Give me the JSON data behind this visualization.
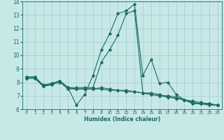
{
  "xlabel": "Humidex (Indice chaleur)",
  "background_color": "#c8e8e8",
  "grid_color": "#a8d0d0",
  "line_color": "#1a6b60",
  "xlim": [
    -0.5,
    23.5
  ],
  "ylim": [
    6,
    14
  ],
  "xticks": [
    0,
    1,
    2,
    3,
    4,
    5,
    6,
    7,
    8,
    9,
    10,
    11,
    12,
    13,
    14,
    15,
    16,
    17,
    18,
    19,
    20,
    21,
    22,
    23
  ],
  "yticks": [
    6,
    7,
    8,
    9,
    10,
    11,
    12,
    13,
    14
  ],
  "lines": [
    {
      "x": [
        0,
        1,
        2,
        3,
        4,
        5,
        6,
        7,
        8,
        9,
        10,
        11,
        12,
        13,
        14,
        15,
        16,
        17,
        18,
        19,
        20,
        21,
        22,
        23
      ],
      "y": [
        8.3,
        8.3,
        7.7,
        7.8,
        8.0,
        7.5,
        7.5,
        7.5,
        7.5,
        7.5,
        7.4,
        7.4,
        7.3,
        7.3,
        7.2,
        7.1,
        7.0,
        6.9,
        6.8,
        6.7,
        6.5,
        6.4,
        6.4,
        6.3
      ]
    },
    {
      "x": [
        0,
        1,
        2,
        3,
        4,
        5,
        6,
        7,
        8,
        9,
        10,
        11,
        12,
        13,
        14,
        15,
        16,
        17,
        18,
        19,
        20,
        21,
        22,
        23
      ],
      "y": [
        8.3,
        8.3,
        7.7,
        7.9,
        8.1,
        7.6,
        7.5,
        7.5,
        7.5,
        7.6,
        7.5,
        7.4,
        7.4,
        7.3,
        7.2,
        7.1,
        7.0,
        7.0,
        6.9,
        6.7,
        6.6,
        6.5,
        6.4,
        6.3
      ]
    },
    {
      "x": [
        0,
        1,
        2,
        3,
        4,
        5,
        6,
        7,
        8,
        9,
        10,
        11,
        12,
        13,
        14,
        15,
        16,
        17,
        18,
        19,
        20,
        21,
        22,
        23
      ],
      "y": [
        8.4,
        8.4,
        7.7,
        7.9,
        8.1,
        7.6,
        6.3,
        7.1,
        8.5,
        10.4,
        11.6,
        13.1,
        13.3,
        13.8,
        8.5,
        9.7,
        7.9,
        8.0,
        7.1,
        6.7,
        6.4,
        6.4,
        6.3,
        6.3
      ]
    },
    {
      "x": [
        0,
        1,
        2,
        3,
        4,
        5,
        6,
        7,
        8,
        9,
        10,
        11,
        12,
        13,
        14,
        15,
        16,
        17,
        18,
        19,
        20,
        21,
        22,
        23
      ],
      "y": [
        8.4,
        8.4,
        7.8,
        7.9,
        8.1,
        7.6,
        7.6,
        7.6,
        7.6,
        9.5,
        10.4,
        11.5,
        13.1,
        13.3,
        7.2,
        7.2,
        7.1,
        6.9,
        6.8,
        6.7,
        6.5,
        6.4,
        6.4,
        6.3
      ]
    }
  ]
}
